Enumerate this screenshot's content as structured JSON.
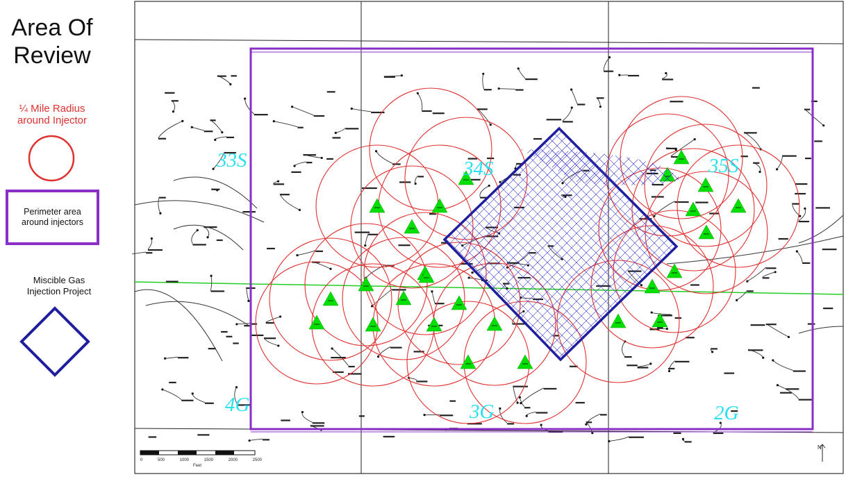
{
  "legend": {
    "title": "Area Of Review",
    "title_line1": "Area Of",
    "title_line2": "Review",
    "radius_label_line1": "¼ Mile Radius",
    "radius_label_line2": "around Injector",
    "perimeter_label": "Perimeter area around injectors",
    "project_label_line1": "Miscible Gas",
    "project_label_line2": "Injection Project"
  },
  "map": {
    "section_labels": [
      "33S",
      "34S",
      "35S",
      "4G",
      "3G",
      "2G"
    ],
    "scale_ticks": [
      "0",
      "500",
      "1000",
      "1500",
      "2000",
      "2500"
    ],
    "scale_unit": "Feet",
    "north_label": "N",
    "injector_count": 26
  },
  "colors": {
    "radius_circle": "#e03030",
    "perimeter": "#8a2ec8",
    "project_outline": "#1f1f9e",
    "injector_marker": "#00e000",
    "section_label": "#29e0ee",
    "east_west_line": "#22cc22"
  }
}
